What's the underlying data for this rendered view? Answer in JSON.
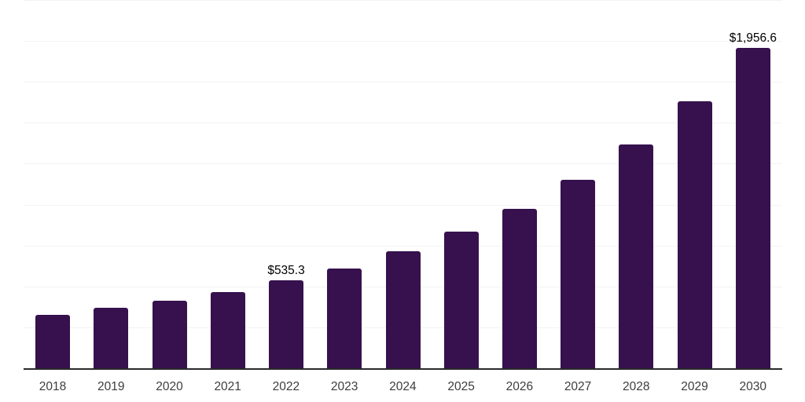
{
  "chart_data": {
    "type": "bar",
    "title": "",
    "xlabel": "",
    "ylabel": "",
    "categories": [
      "2018",
      "2019",
      "2020",
      "2021",
      "2022",
      "2023",
      "2024",
      "2025",
      "2026",
      "2027",
      "2028",
      "2029",
      "2030"
    ],
    "values": [
      328,
      371,
      413,
      467,
      535.3,
      611,
      716,
      836,
      975,
      1153,
      1367,
      1631,
      1956.6
    ],
    "labeled_bars": [
      {
        "category": "2022",
        "label": "$535.3"
      },
      {
        "category": "2030",
        "label": "$1,956.6"
      }
    ],
    "ylim": [
      0,
      2250
    ],
    "gridline_interval": 250,
    "grid": "horizontal-only",
    "legend": "none",
    "y_axis_labels_visible": false,
    "bar_color": "#36114d",
    "axis_line_color": "#2a2a2a",
    "gridline_color": "#f3f3f3",
    "tick_label_color": "#3d3d3d",
    "data_label_color": "#000000",
    "background_color": "#ffffff"
  }
}
